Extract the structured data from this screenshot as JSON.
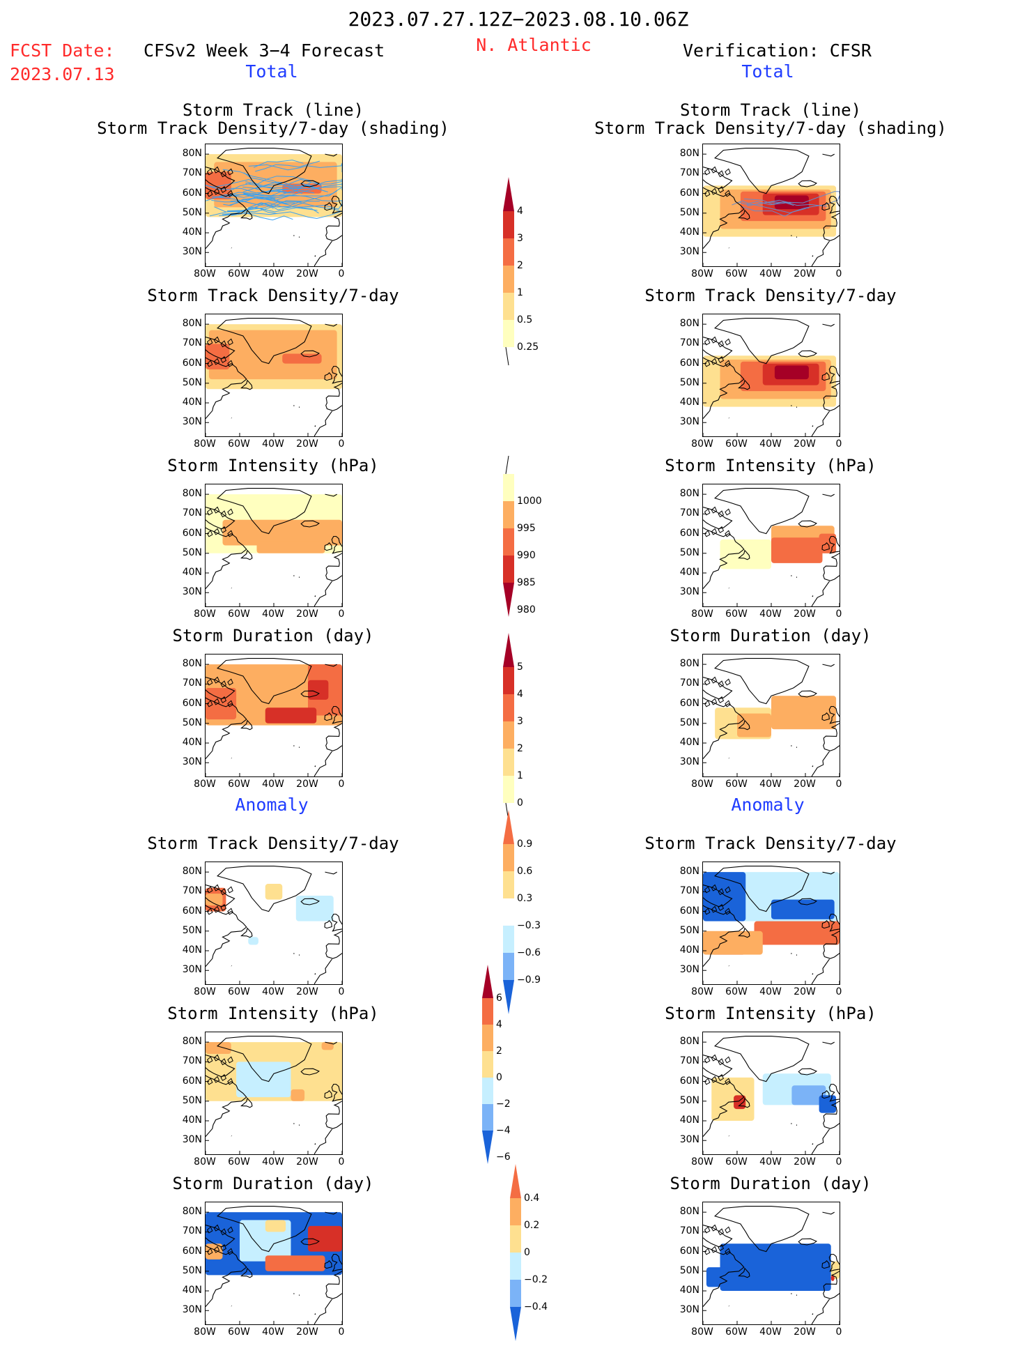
{
  "header": {
    "period": "2023.07.27.12Z−2023.08.10.06Z",
    "fcst_label": "FCST Date:",
    "fcst_date": "2023.07.13",
    "model_title": "CFSv2 Week 3−4 Forecast",
    "region": "N. Atlantic",
    "verification": "Verification: CFSR"
  },
  "sections": {
    "total": "Total",
    "anomaly": "Anomaly"
  },
  "axes": {
    "lat_labels": [
      "80N",
      "70N",
      "60N",
      "50N",
      "40N",
      "30N"
    ],
    "lon_labels": [
      "80W",
      "60W",
      "40W",
      "20W",
      "0"
    ]
  },
  "panels": [
    {
      "id": "fc-track",
      "title1": "Storm Track (line)",
      "title2": "Storm Track Density/7-day (shading)",
      "tracks": true,
      "fill": [
        {
          "color": "#fee090",
          "lat": [
            48,
            80
          ],
          "lon": [
            -80,
            0
          ]
        },
        {
          "color": "#fdae61",
          "lat": [
            53,
            76
          ],
          "lon": [
            -75,
            -3
          ]
        },
        {
          "color": "#f46d43",
          "lat": [
            57,
            71
          ],
          "lon": [
            -80,
            -65
          ]
        },
        {
          "color": "#f46d43",
          "lat": [
            60,
            65
          ],
          "lon": [
            -35,
            -12
          ]
        }
      ]
    },
    {
      "id": "cf-track",
      "title1": "Storm Track (line)",
      "title2": "Storm Track Density/7-day (shading)",
      "tracks_small": true,
      "fill": [
        {
          "color": "#fee090",
          "lat": [
            38,
            64
          ],
          "lon": [
            -80,
            -2
          ]
        },
        {
          "color": "#fdae61",
          "lat": [
            42,
            62
          ],
          "lon": [
            -70,
            -5
          ]
        },
        {
          "color": "#f46d43",
          "lat": [
            46,
            61
          ],
          "lon": [
            -58,
            -8
          ]
        },
        {
          "color": "#d73027",
          "lat": [
            49,
            60
          ],
          "lon": [
            -45,
            -12
          ]
        },
        {
          "color": "#a50026",
          "lat": [
            52,
            59
          ],
          "lon": [
            -38,
            -18
          ]
        }
      ]
    },
    {
      "id": "fc-density",
      "title1": "Storm Track Density/7-day",
      "fill": [
        {
          "color": "#fee090",
          "lat": [
            47,
            80
          ],
          "lon": [
            -80,
            0
          ]
        },
        {
          "color": "#fdae61",
          "lat": [
            52,
            77
          ],
          "lon": [
            -78,
            -3
          ]
        },
        {
          "color": "#f46d43",
          "lat": [
            57,
            70
          ],
          "lon": [
            -80,
            -66
          ]
        },
        {
          "color": "#f46d43",
          "lat": [
            60,
            65
          ],
          "lon": [
            -35,
            -12
          ]
        }
      ]
    },
    {
      "id": "cf-density",
      "title1": "Storm Track Density/7-day",
      "fill": [
        {
          "color": "#fee090",
          "lat": [
            38,
            64
          ],
          "lon": [
            -80,
            -2
          ]
        },
        {
          "color": "#fdae61",
          "lat": [
            42,
            62
          ],
          "lon": [
            -70,
            -5
          ]
        },
        {
          "color": "#f46d43",
          "lat": [
            46,
            61
          ],
          "lon": [
            -58,
            -8
          ]
        },
        {
          "color": "#d73027",
          "lat": [
            49,
            60
          ],
          "lon": [
            -45,
            -12
          ]
        },
        {
          "color": "#a50026",
          "lat": [
            52,
            59
          ],
          "lon": [
            -38,
            -18
          ]
        }
      ]
    },
    {
      "id": "fc-intensity",
      "title1": "Storm Intensity (hPa)",
      "fill": [
        {
          "color": "#ffffbf",
          "lat": [
            50,
            80
          ],
          "lon": [
            -80,
            0
          ]
        },
        {
          "color": "#fdae61",
          "lat": [
            54,
            67
          ],
          "lon": [
            -70,
            0
          ]
        },
        {
          "color": "#fdae61",
          "lat": [
            50,
            56
          ],
          "lon": [
            -50,
            -10
          ]
        }
      ]
    },
    {
      "id": "cf-intensity",
      "title1": "Storm Intensity (hPa)",
      "fill": [
        {
          "color": "#ffffbf",
          "lat": [
            42,
            57
          ],
          "lon": [
            -70,
            -40
          ]
        },
        {
          "color": "#fdae61",
          "lat": [
            50,
            64
          ],
          "lon": [
            -40,
            -3
          ]
        },
        {
          "color": "#f46d43",
          "lat": [
            45,
            58
          ],
          "lon": [
            -40,
            -10
          ]
        },
        {
          "color": "#f46d43",
          "lat": [
            50,
            60
          ],
          "lon": [
            -12,
            -2
          ]
        }
      ]
    },
    {
      "id": "fc-duration",
      "title1": "Storm Duration (day)",
      "fill": [
        {
          "color": "#fdae61",
          "lat": [
            49,
            80
          ],
          "lon": [
            -80,
            0
          ]
        },
        {
          "color": "#f46d43",
          "lat": [
            52,
            68
          ],
          "lon": [
            -80,
            -62
          ]
        },
        {
          "color": "#f46d43",
          "lat": [
            54,
            80
          ],
          "lon": [
            -20,
            0
          ]
        },
        {
          "color": "#d73027",
          "lat": [
            50,
            58
          ],
          "lon": [
            -45,
            -15
          ]
        },
        {
          "color": "#d73027",
          "lat": [
            62,
            72
          ],
          "lon": [
            -20,
            -8
          ]
        }
      ]
    },
    {
      "id": "cf-duration",
      "title1": "Storm Duration (day)",
      "fill": [
        {
          "color": "#fee090",
          "lat": [
            42,
            58
          ],
          "lon": [
            -73,
            -40
          ]
        },
        {
          "color": "#fdae61",
          "lat": [
            47,
            64
          ],
          "lon": [
            -40,
            -2
          ]
        },
        {
          "color": "#fdae61",
          "lat": [
            43,
            55
          ],
          "lon": [
            -60,
            -40
          ]
        }
      ]
    },
    {
      "id": "fc-anom-density",
      "title1": "Storm Track Density/7-day",
      "fill": [
        {
          "color": "#f46d43",
          "lat": [
            60,
            72
          ],
          "lon": [
            -80,
            -68
          ]
        },
        {
          "color": "#fdae61",
          "lat": [
            63,
            69
          ],
          "lon": [
            -80,
            -70
          ]
        },
        {
          "color": "#fee090",
          "lat": [
            66,
            74
          ],
          "lon": [
            -45,
            -35
          ]
        },
        {
          "color": "#c6efff",
          "lat": [
            55,
            68
          ],
          "lon": [
            -27,
            -5
          ]
        },
        {
          "color": "#c6efff",
          "lat": [
            43,
            47
          ],
          "lon": [
            -55,
            -49
          ]
        }
      ]
    },
    {
      "id": "cf-anom-density",
      "title1": "Storm Track Density/7-day",
      "fill": [
        {
          "color": "#c6efff",
          "lat": [
            55,
            80
          ],
          "lon": [
            -80,
            0
          ]
        },
        {
          "color": "#1a63d9",
          "lat": [
            55,
            80
          ],
          "lon": [
            -80,
            -55
          ]
        },
        {
          "color": "#1a63d9",
          "lat": [
            56,
            66
          ],
          "lon": [
            -40,
            -3
          ]
        },
        {
          "color": "#f46d43",
          "lat": [
            43,
            55
          ],
          "lon": [
            -50,
            0
          ]
        },
        {
          "color": "#d73027",
          "lat": [
            38,
            48
          ],
          "lon": [
            -75,
            -55
          ]
        },
        {
          "color": "#fdae61",
          "lat": [
            38,
            50
          ],
          "lon": [
            -80,
            -45
          ]
        }
      ]
    },
    {
      "id": "fc-anom-intensity",
      "title1": "Storm Intensity (hPa)",
      "fill": [
        {
          "color": "#fee090",
          "lat": [
            50,
            80
          ],
          "lon": [
            -80,
            0
          ]
        },
        {
          "color": "#c6efff",
          "lat": [
            52,
            70
          ],
          "lon": [
            -62,
            -30
          ]
        },
        {
          "color": "#fdae61",
          "lat": [
            74,
            80
          ],
          "lon": [
            -80,
            -65
          ]
        },
        {
          "color": "#fdae61",
          "lat": [
            50,
            56
          ],
          "lon": [
            -30,
            -22
          ]
        },
        {
          "color": "#fdae61",
          "lat": [
            76,
            80
          ],
          "lon": [
            -12,
            -5
          ]
        }
      ]
    },
    {
      "id": "cf-anom-intensity",
      "title1": "Storm Intensity (hPa)",
      "fill": [
        {
          "color": "#fee090",
          "lat": [
            40,
            62
          ],
          "lon": [
            -75,
            -50
          ]
        },
        {
          "color": "#d73027",
          "lat": [
            46,
            53
          ],
          "lon": [
            -62,
            -55
          ]
        },
        {
          "color": "#c6efff",
          "lat": [
            48,
            64
          ],
          "lon": [
            -45,
            -5
          ]
        },
        {
          "color": "#7bb3f7",
          "lat": [
            48,
            58
          ],
          "lon": [
            -28,
            -8
          ]
        },
        {
          "color": "#1a63d9",
          "lat": [
            44,
            53
          ],
          "lon": [
            -12,
            -2
          ]
        }
      ]
    },
    {
      "id": "fc-anom-duration",
      "title1": "Storm Duration (day)",
      "fill": [
        {
          "color": "#1a63d9",
          "lat": [
            48,
            80
          ],
          "lon": [
            -80,
            0
          ]
        },
        {
          "color": "#c6efff",
          "lat": [
            55,
            76
          ],
          "lon": [
            -60,
            -30
          ]
        },
        {
          "color": "#fee090",
          "lat": [
            70,
            76
          ],
          "lon": [
            -45,
            -33
          ]
        },
        {
          "color": "#f46d43",
          "lat": [
            50,
            58
          ],
          "lon": [
            -45,
            -10
          ]
        },
        {
          "color": "#d73027",
          "lat": [
            60,
            73
          ],
          "lon": [
            -20,
            0
          ]
        },
        {
          "color": "#fdae61",
          "lat": [
            56,
            64
          ],
          "lon": [
            -80,
            -70
          ]
        }
      ]
    },
    {
      "id": "cf-anom-duration",
      "title1": "Storm Duration (day)",
      "fill": [
        {
          "color": "#1a63d9",
          "lat": [
            40,
            64
          ],
          "lon": [
            -70,
            -5
          ]
        },
        {
          "color": "#1a63d9",
          "lat": [
            42,
            52
          ],
          "lon": [
            -78,
            -65
          ]
        },
        {
          "color": "#fee090",
          "lat": [
            46,
            55
          ],
          "lon": [
            -5,
            0
          ]
        },
        {
          "color": "#d73027",
          "lat": [
            45,
            48
          ],
          "lon": [
            -5,
            -3
          ]
        }
      ]
    }
  ],
  "colorbars": [
    {
      "id": "cb-density",
      "labels": [
        "4",
        "3",
        "2",
        "1",
        "0.5",
        "0.25"
      ],
      "colors": [
        "#a50026",
        "#d73027",
        "#f46d43",
        "#fdae61",
        "#fee090",
        "#ffffbf"
      ]
    },
    {
      "id": "cb-intensity",
      "labels": [
        "1000",
        "995",
        "990",
        "985",
        "980"
      ],
      "colors": [
        "#ffffbf",
        "#fdae61",
        "#f46d43",
        "#d73027",
        "#a50026"
      ]
    },
    {
      "id": "cb-duration",
      "labels": [
        "5",
        "4",
        "3",
        "2",
        "1",
        "0"
      ],
      "colors": [
        "#a50026",
        "#d73027",
        "#f46d43",
        "#fdae61",
        "#fee090",
        "#ffffbf"
      ]
    },
    {
      "id": "cb-anom-density",
      "labels": [
        "0.9",
        "0.6",
        "0.3",
        "−0.3",
        "−0.6",
        "−0.9"
      ],
      "colors": [
        "#f46d43",
        "#fdae61",
        "#fee090",
        "#ffffff",
        "#c6efff",
        "#7bb3f7",
        "#1a63d9"
      ]
    },
    {
      "id": "cb-anom-intensity",
      "labels": [
        "6",
        "4",
        "2",
        "0",
        "−2",
        "−4",
        "−6"
      ],
      "colors": [
        "#a50026",
        "#f46d43",
        "#fdae61",
        "#fee090",
        "#c6efff",
        "#7bb3f7",
        "#1a63d9"
      ]
    },
    {
      "id": "cb-anom-duration",
      "labels": [
        "0.4",
        "0.2",
        "0",
        "−0.2",
        "−0.4"
      ],
      "colors": [
        "#f46d43",
        "#fdae61",
        "#fee090",
        "#c6efff",
        "#7bb3f7",
        "#1a63d9"
      ]
    }
  ]
}
